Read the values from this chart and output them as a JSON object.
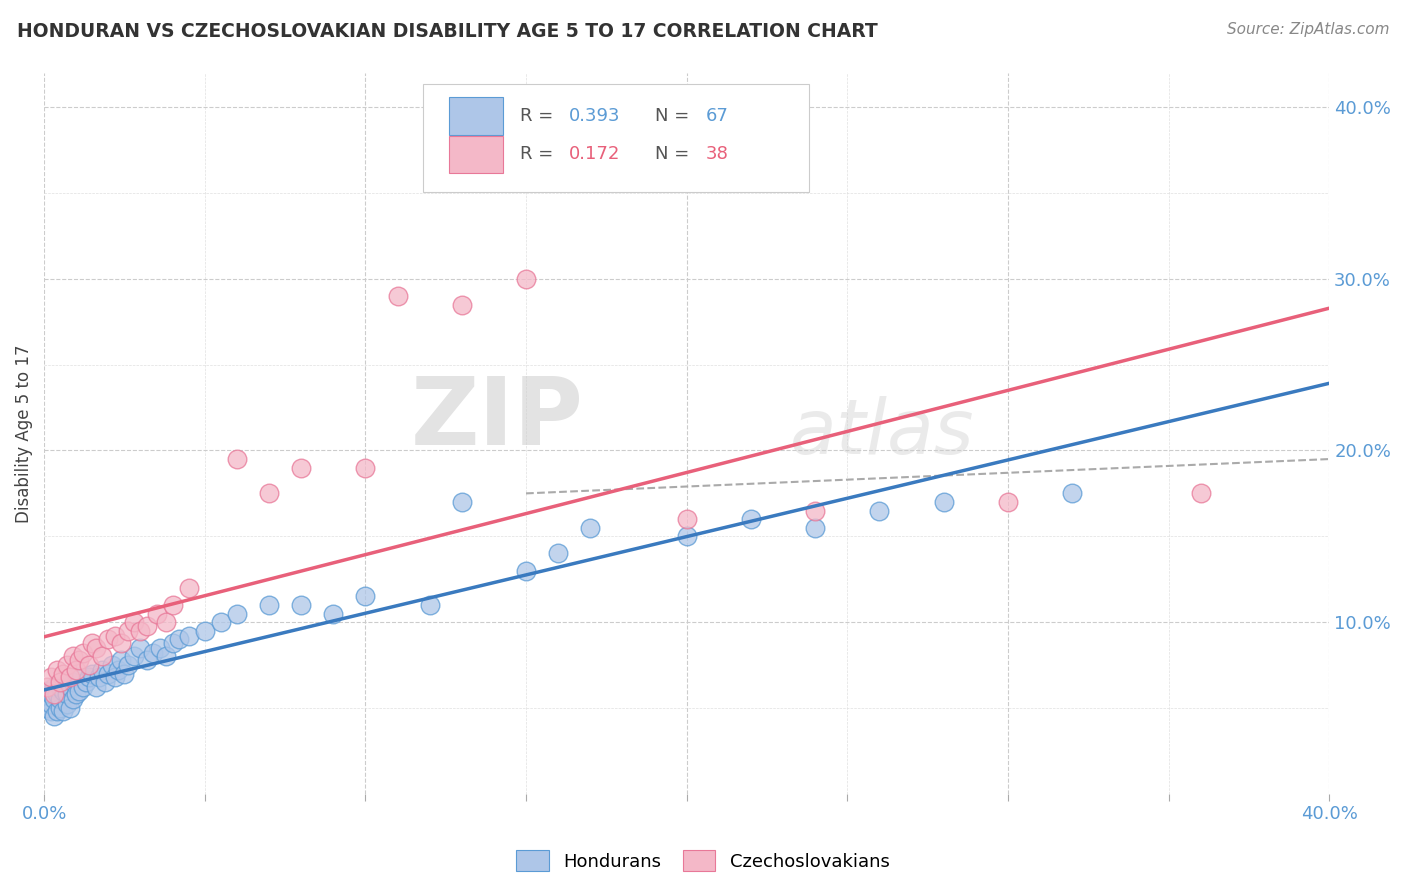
{
  "title": "HONDURAN VS CZECHOSLOVAKIAN DISABILITY AGE 5 TO 17 CORRELATION CHART",
  "source_text": "Source: ZipAtlas.com",
  "ylabel": "Disability Age 5 to 17",
  "xlim": [
    0.0,
    0.4
  ],
  "ylim": [
    0.0,
    0.42
  ],
  "honduran_fill_color": "#aec6e8",
  "honduran_edge_color": "#5b9bd5",
  "czechoslovakian_fill_color": "#f4b8c8",
  "czechoslovakian_edge_color": "#e87898",
  "honduran_trend_color": "#3a7abf",
  "czechoslovakian_trend_color": "#e8607a",
  "dashed_trend_color": "#aaaaaa",
  "R_honduran": 0.393,
  "N_honduran": 67,
  "R_czechoslovakian": 0.172,
  "N_czechoslovakian": 38,
  "watermark_zip": "ZIP",
  "watermark_atlas": "atlas",
  "legend_honduran": "Hondurans",
  "legend_czechoslovakian": "Czechoslovakians",
  "honduran_x": [
    0.001,
    0.001,
    0.001,
    0.002,
    0.002,
    0.002,
    0.003,
    0.003,
    0.003,
    0.004,
    0.004,
    0.005,
    0.005,
    0.005,
    0.006,
    0.006,
    0.007,
    0.007,
    0.008,
    0.008,
    0.009,
    0.009,
    0.01,
    0.01,
    0.011,
    0.012,
    0.013,
    0.014,
    0.015,
    0.016,
    0.017,
    0.018,
    0.019,
    0.02,
    0.021,
    0.022,
    0.023,
    0.024,
    0.025,
    0.026,
    0.028,
    0.03,
    0.032,
    0.034,
    0.036,
    0.038,
    0.04,
    0.042,
    0.045,
    0.05,
    0.055,
    0.06,
    0.07,
    0.08,
    0.09,
    0.1,
    0.12,
    0.13,
    0.15,
    0.16,
    0.17,
    0.2,
    0.22,
    0.24,
    0.26,
    0.28,
    0.32
  ],
  "honduran_y": [
    0.05,
    0.055,
    0.06,
    0.048,
    0.052,
    0.058,
    0.045,
    0.055,
    0.062,
    0.048,
    0.058,
    0.05,
    0.055,
    0.062,
    0.048,
    0.06,
    0.052,
    0.058,
    0.05,
    0.062,
    0.055,
    0.065,
    0.058,
    0.068,
    0.06,
    0.062,
    0.065,
    0.068,
    0.07,
    0.062,
    0.068,
    0.072,
    0.065,
    0.07,
    0.075,
    0.068,
    0.072,
    0.078,
    0.07,
    0.075,
    0.08,
    0.085,
    0.078,
    0.082,
    0.085,
    0.08,
    0.088,
    0.09,
    0.092,
    0.095,
    0.1,
    0.105,
    0.11,
    0.11,
    0.105,
    0.115,
    0.11,
    0.17,
    0.13,
    0.14,
    0.155,
    0.15,
    0.16,
    0.155,
    0.165,
    0.17,
    0.175
  ],
  "czechoslovakian_x": [
    0.001,
    0.002,
    0.003,
    0.004,
    0.005,
    0.006,
    0.007,
    0.008,
    0.009,
    0.01,
    0.011,
    0.012,
    0.014,
    0.015,
    0.016,
    0.018,
    0.02,
    0.022,
    0.024,
    0.026,
    0.028,
    0.03,
    0.032,
    0.035,
    0.038,
    0.04,
    0.045,
    0.06,
    0.07,
    0.08,
    0.1,
    0.11,
    0.13,
    0.15,
    0.2,
    0.24,
    0.3,
    0.36
  ],
  "czechoslovakian_y": [
    0.062,
    0.068,
    0.058,
    0.072,
    0.065,
    0.07,
    0.075,
    0.068,
    0.08,
    0.072,
    0.078,
    0.082,
    0.075,
    0.088,
    0.085,
    0.08,
    0.09,
    0.092,
    0.088,
    0.095,
    0.1,
    0.095,
    0.098,
    0.105,
    0.1,
    0.11,
    0.12,
    0.195,
    0.175,
    0.19,
    0.19,
    0.29,
    0.285,
    0.3,
    0.16,
    0.165,
    0.17,
    0.175
  ]
}
